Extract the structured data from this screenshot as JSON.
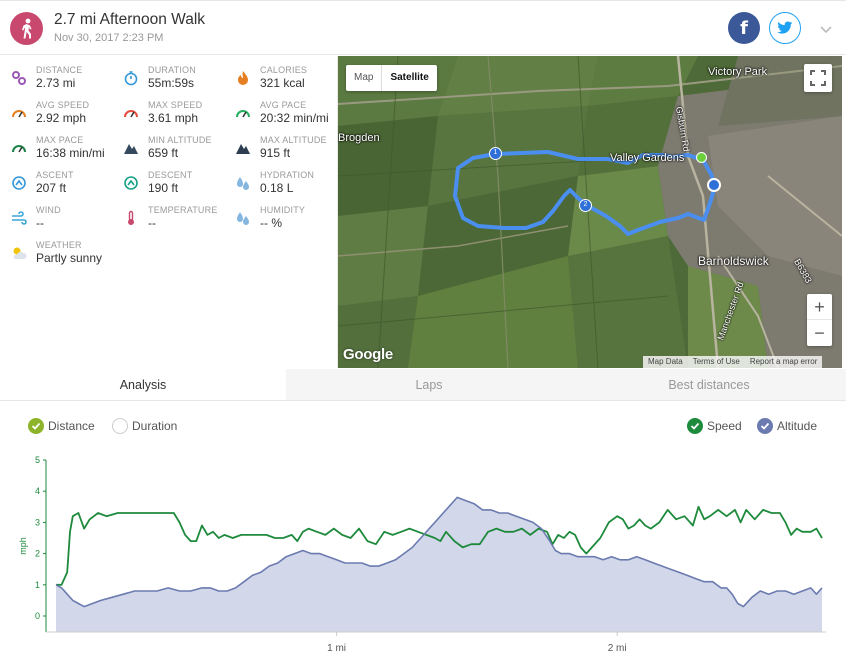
{
  "header": {
    "title": "2.7 mi Afternoon Walk",
    "date": "Nov 30, 2017 2:23 PM",
    "facebook_glyph": "f",
    "icons": {
      "activity": "walker-icon",
      "facebook": "facebook-icon",
      "twitter": "twitter-icon",
      "more": "chevron-down-icon"
    },
    "colors": {
      "activity": "#c8486e",
      "facebook": "#3b5998",
      "twitter": "#1da1f2"
    }
  },
  "stats": [
    {
      "label": "DISTANCE",
      "value": "2.73 mi",
      "icon": "distance-icon",
      "color": "#9b59b6"
    },
    {
      "label": "DURATION",
      "value": "55m:59s",
      "icon": "stopwatch-icon",
      "color": "#3498db"
    },
    {
      "label": "CALORIES",
      "value": "321 kcal",
      "icon": "flame-icon",
      "color": "#e67e22"
    },
    {
      "label": "AVG SPEED",
      "value": "2.92 mph",
      "icon": "speedometer-icon",
      "color": "#e67e22"
    },
    {
      "label": "MAX SPEED",
      "value": "3.61 mph",
      "icon": "speedometer-icon",
      "color": "#e74c3c"
    },
    {
      "label": "AVG PACE",
      "value": "20:32 min/mi",
      "icon": "pace-gauge-icon",
      "color": "#27ae60"
    },
    {
      "label": "MAX PACE",
      "value": "16:38 min/mi",
      "icon": "pace-gauge-icon",
      "color": "#1e8449"
    },
    {
      "label": "MIN ALTITUDE",
      "value": "659 ft",
      "icon": "mountain-icon",
      "color": "#34495e"
    },
    {
      "label": "MAX ALTITUDE",
      "value": "915 ft",
      "icon": "mountain-icon",
      "color": "#2c3e50"
    },
    {
      "label": "ASCENT",
      "value": "207 ft",
      "icon": "ascent-icon",
      "color": "#3498db"
    },
    {
      "label": "DESCENT",
      "value": "190 ft",
      "icon": "descent-icon",
      "color": "#16a085"
    },
    {
      "label": "HYDRATION",
      "value": "0.18 L",
      "icon": "water-drops-icon",
      "color": "#85b6e0"
    },
    {
      "label": "WIND",
      "value": "--",
      "icon": "wind-icon",
      "color": "#3aa6d8"
    },
    {
      "label": "TEMPERATURE",
      "value": "--",
      "icon": "thermometer-icon",
      "color": "#c8486e"
    },
    {
      "label": "HUMIDITY",
      "value": "-- %",
      "icon": "humidity-icon",
      "color": "#85b6e0"
    },
    {
      "label": "WEATHER",
      "value": "Partly sunny",
      "icon": "partly-sunny-icon",
      "color": "#f1c40f"
    }
  ],
  "map": {
    "type_map": "Map",
    "type_satellite": "Satellite",
    "zoom_in": "+",
    "zoom_out": "−",
    "logo": "Google",
    "footer": [
      "Map Data",
      "Terms of Use",
      "Report a map error"
    ],
    "places": [
      {
        "name": "Victory Park"
      },
      {
        "name": "Brogden"
      },
      {
        "name": "Valley Gardens"
      },
      {
        "name": "Barnoldswick"
      },
      {
        "name": "Gisburn Rd"
      },
      {
        "name": "Manchester Rd"
      },
      {
        "name": "B6383"
      }
    ],
    "markers": [
      "1",
      "2"
    ],
    "route_color": "#4a8ff0"
  },
  "tabs": [
    {
      "label": "Analysis",
      "active": true
    },
    {
      "label": "Laps",
      "active": false
    },
    {
      "label": "Best distances",
      "active": false
    }
  ],
  "chart_legend": {
    "distance": "Distance",
    "duration": "Duration",
    "speed": "Speed",
    "altitude": "Altitude"
  },
  "chart_data": {
    "type": "line",
    "ylabel": "mph",
    "ylim": [
      0,
      5
    ],
    "yticks": [
      0,
      1,
      2,
      3,
      4,
      5
    ],
    "xlim": [
      0,
      2.73
    ],
    "xticks": [
      {
        "value": 1,
        "label": "1 mi"
      },
      {
        "value": 2,
        "label": "2 mi"
      }
    ],
    "grid": false,
    "legend_position": "top",
    "series": [
      {
        "name": "Speed",
        "type": "line",
        "color": "#1e8a3c",
        "points": [
          [
            0,
            1.0
          ],
          [
            0.02,
            1.0
          ],
          [
            0.04,
            1.4
          ],
          [
            0.05,
            2.7
          ],
          [
            0.06,
            3.2
          ],
          [
            0.08,
            3.3
          ],
          [
            0.1,
            2.8
          ],
          [
            0.12,
            3.1
          ],
          [
            0.15,
            3.3
          ],
          [
            0.18,
            3.2
          ],
          [
            0.22,
            3.3
          ],
          [
            0.26,
            3.3
          ],
          [
            0.3,
            3.3
          ],
          [
            0.34,
            3.3
          ],
          [
            0.38,
            3.3
          ],
          [
            0.42,
            3.3
          ],
          [
            0.44,
            3.0
          ],
          [
            0.46,
            2.6
          ],
          [
            0.48,
            2.4
          ],
          [
            0.5,
            2.4
          ],
          [
            0.52,
            2.9
          ],
          [
            0.54,
            2.6
          ],
          [
            0.56,
            2.7
          ],
          [
            0.58,
            2.5
          ],
          [
            0.6,
            2.6
          ],
          [
            0.63,
            2.5
          ],
          [
            0.66,
            2.6
          ],
          [
            0.69,
            2.6
          ],
          [
            0.72,
            2.6
          ],
          [
            0.75,
            2.6
          ],
          [
            0.78,
            2.5
          ],
          [
            0.81,
            2.5
          ],
          [
            0.84,
            2.6
          ],
          [
            0.86,
            2.4
          ],
          [
            0.88,
            2.7
          ],
          [
            0.9,
            2.8
          ],
          [
            0.93,
            2.7
          ],
          [
            0.96,
            2.6
          ],
          [
            0.99,
            2.8
          ],
          [
            1.02,
            2.6
          ],
          [
            1.05,
            2.5
          ],
          [
            1.08,
            2.8
          ],
          [
            1.11,
            2.4
          ],
          [
            1.14,
            2.3
          ],
          [
            1.17,
            2.7
          ],
          [
            1.2,
            2.6
          ],
          [
            1.23,
            2.7
          ],
          [
            1.26,
            2.8
          ],
          [
            1.29,
            2.7
          ],
          [
            1.32,
            2.6
          ],
          [
            1.35,
            2.5
          ],
          [
            1.37,
            2.4
          ],
          [
            1.39,
            2.7
          ],
          [
            1.42,
            2.4
          ],
          [
            1.45,
            2.2
          ],
          [
            1.48,
            2.3
          ],
          [
            1.51,
            2.3
          ],
          [
            1.54,
            2.7
          ],
          [
            1.57,
            2.8
          ],
          [
            1.6,
            2.7
          ],
          [
            1.63,
            2.7
          ],
          [
            1.66,
            2.8
          ],
          [
            1.69,
            2.6
          ],
          [
            1.72,
            2.8
          ],
          [
            1.75,
            2.7
          ],
          [
            1.77,
            2.3
          ],
          [
            1.79,
            2.6
          ],
          [
            1.81,
            2.5
          ],
          [
            1.83,
            2.7
          ],
          [
            1.85,
            2.6
          ],
          [
            1.87,
            2.2
          ],
          [
            1.89,
            2.0
          ],
          [
            1.91,
            2.2
          ],
          [
            1.94,
            2.5
          ],
          [
            1.97,
            3.0
          ],
          [
            2.0,
            3.2
          ],
          [
            2.02,
            3.1
          ],
          [
            2.04,
            2.8
          ],
          [
            2.06,
            2.9
          ],
          [
            2.08,
            3.1
          ],
          [
            2.1,
            2.9
          ],
          [
            2.12,
            2.8
          ],
          [
            2.15,
            3.0
          ],
          [
            2.18,
            3.4
          ],
          [
            2.21,
            3.1
          ],
          [
            2.24,
            3.2
          ],
          [
            2.27,
            2.9
          ],
          [
            2.29,
            3.5
          ],
          [
            2.31,
            3.1
          ],
          [
            2.33,
            3.2
          ],
          [
            2.36,
            3.4
          ],
          [
            2.39,
            3.2
          ],
          [
            2.42,
            3.4
          ],
          [
            2.44,
            3.0
          ],
          [
            2.46,
            3.4
          ],
          [
            2.49,
            3.1
          ],
          [
            2.52,
            3.4
          ],
          [
            2.55,
            3.3
          ],
          [
            2.58,
            3.3
          ],
          [
            2.6,
            3.0
          ],
          [
            2.62,
            2.6
          ],
          [
            2.64,
            2.8
          ],
          [
            2.66,
            2.7
          ],
          [
            2.69,
            2.7
          ],
          [
            2.71,
            2.8
          ],
          [
            2.73,
            2.5
          ]
        ]
      },
      {
        "name": "Altitude",
        "type": "area",
        "color": "#6b7bb0",
        "fill": "#d3d7ea",
        "points": [
          [
            0,
            1.0
          ],
          [
            0.02,
            0.9
          ],
          [
            0.04,
            0.7
          ],
          [
            0.06,
            0.5
          ],
          [
            0.08,
            0.4
          ],
          [
            0.1,
            0.3
          ],
          [
            0.13,
            0.4
          ],
          [
            0.16,
            0.5
          ],
          [
            0.2,
            0.6
          ],
          [
            0.24,
            0.7
          ],
          [
            0.28,
            0.8
          ],
          [
            0.32,
            0.8
          ],
          [
            0.36,
            0.8
          ],
          [
            0.4,
            0.9
          ],
          [
            0.44,
            0.8
          ],
          [
            0.48,
            0.8
          ],
          [
            0.52,
            0.9
          ],
          [
            0.55,
            0.9
          ],
          [
            0.58,
            0.8
          ],
          [
            0.61,
            0.8
          ],
          [
            0.64,
            0.9
          ],
          [
            0.67,
            1.1
          ],
          [
            0.7,
            1.3
          ],
          [
            0.73,
            1.4
          ],
          [
            0.76,
            1.6
          ],
          [
            0.79,
            1.7
          ],
          [
            0.82,
            1.9
          ],
          [
            0.85,
            2.0
          ],
          [
            0.88,
            2.1
          ],
          [
            0.91,
            2.0
          ],
          [
            0.94,
            2.0
          ],
          [
            0.97,
            1.9
          ],
          [
            1.0,
            1.8
          ],
          [
            1.03,
            1.7
          ],
          [
            1.06,
            1.7
          ],
          [
            1.09,
            1.7
          ],
          [
            1.12,
            1.6
          ],
          [
            1.15,
            1.6
          ],
          [
            1.18,
            1.7
          ],
          [
            1.21,
            1.8
          ],
          [
            1.24,
            2.0
          ],
          [
            1.27,
            2.2
          ],
          [
            1.3,
            2.5
          ],
          [
            1.33,
            2.8
          ],
          [
            1.36,
            3.1
          ],
          [
            1.38,
            3.3
          ],
          [
            1.41,
            3.6
          ],
          [
            1.43,
            3.8
          ],
          [
            1.46,
            3.7
          ],
          [
            1.49,
            3.6
          ],
          [
            1.52,
            3.4
          ],
          [
            1.55,
            3.4
          ],
          [
            1.58,
            3.3
          ],
          [
            1.61,
            3.3
          ],
          [
            1.64,
            3.2
          ],
          [
            1.67,
            3.1
          ],
          [
            1.7,
            3.0
          ],
          [
            1.73,
            2.8
          ],
          [
            1.76,
            2.4
          ],
          [
            1.78,
            2.1
          ],
          [
            1.8,
            2.0
          ],
          [
            1.83,
            2.0
          ],
          [
            1.86,
            1.9
          ],
          [
            1.89,
            1.9
          ],
          [
            1.92,
            1.9
          ],
          [
            1.95,
            1.8
          ],
          [
            1.98,
            1.9
          ],
          [
            2.01,
            1.8
          ],
          [
            2.04,
            1.8
          ],
          [
            2.07,
            1.9
          ],
          [
            2.1,
            1.8
          ],
          [
            2.13,
            1.7
          ],
          [
            2.16,
            1.6
          ],
          [
            2.19,
            1.5
          ],
          [
            2.22,
            1.4
          ],
          [
            2.25,
            1.3
          ],
          [
            2.28,
            1.2
          ],
          [
            2.31,
            1.1
          ],
          [
            2.34,
            1.1
          ],
          [
            2.37,
            0.9
          ],
          [
            2.39,
            0.9
          ],
          [
            2.41,
            0.7
          ],
          [
            2.43,
            0.4
          ],
          [
            2.45,
            0.3
          ],
          [
            2.48,
            0.6
          ],
          [
            2.51,
            0.8
          ],
          [
            2.54,
            0.7
          ],
          [
            2.57,
            0.8
          ],
          [
            2.6,
            0.8
          ],
          [
            2.63,
            0.7
          ],
          [
            2.66,
            0.8
          ],
          [
            2.69,
            0.9
          ],
          [
            2.71,
            0.7
          ],
          [
            2.73,
            0.9
          ]
        ]
      }
    ]
  }
}
